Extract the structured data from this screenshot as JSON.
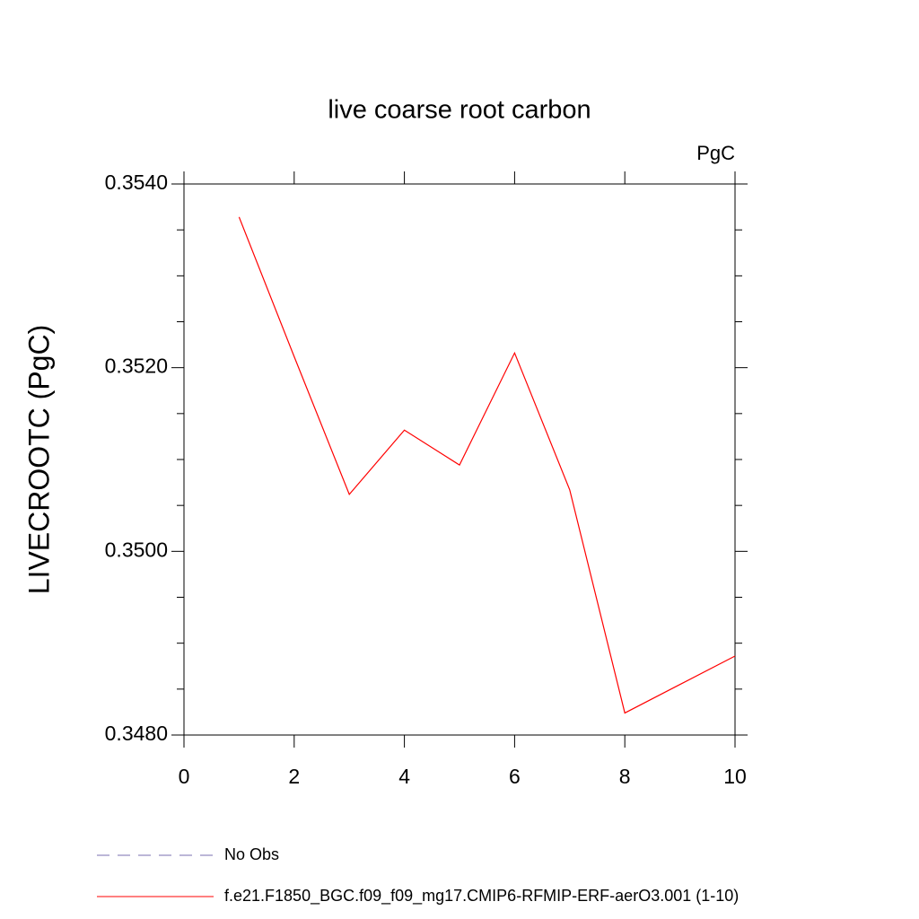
{
  "chart_data": {
    "type": "line",
    "title": "live coarse root carbon",
    "units": "PgC",
    "ylabel": "LIVECROOTC  (PgC)",
    "x": [
      1,
      2,
      3,
      4,
      5,
      6,
      7,
      8,
      9,
      10
    ],
    "series": [
      {
        "name": "No Obs",
        "color": "#7a6fb0",
        "dash": true,
        "values": [
          null,
          null,
          null,
          null,
          null,
          null,
          null,
          null,
          null,
          null
        ]
      },
      {
        "name": "f.e21.F1850_BGC.f09_f09_mg17.CMIP6-RFMIP-ERF-aerO3.001 (1-10)",
        "color": "#ff0000",
        "dash": false,
        "values": [
          0.35364,
          0.35212,
          0.35062,
          0.35132,
          0.35094,
          0.35216,
          0.35067,
          0.34824,
          0.34855,
          0.34886
        ]
      }
    ],
    "xlim": [
      0,
      10
    ],
    "xticks": [
      0,
      2,
      4,
      6,
      8,
      10
    ],
    "ylim": [
      0.348,
      0.354
    ],
    "yticks": [
      {
        "value": 0.348,
        "label": "0.3480"
      },
      {
        "value": 0.35,
        "label": "0.3500"
      },
      {
        "value": 0.352,
        "label": "0.3520"
      },
      {
        "value": 0.354,
        "label": "0.3540"
      }
    ],
    "yminorticks": [
      0.3485,
      0.349,
      0.3495,
      0.3505,
      0.351,
      0.3515,
      0.3525,
      0.353,
      0.3535
    ]
  }
}
